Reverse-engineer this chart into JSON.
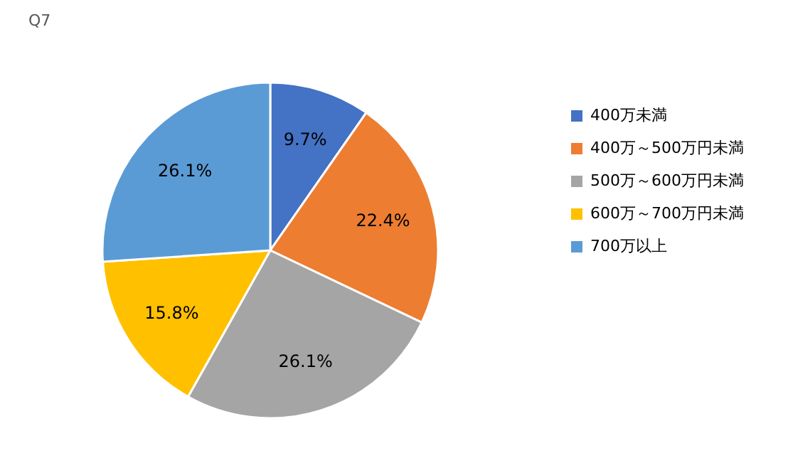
{
  "chart_data": {
    "type": "pie",
    "title": "Q7",
    "categories": [
      "400万未満",
      "400万～500万円未満",
      "500万～600万円未満",
      "600万～700万円未満",
      "700万以上"
    ],
    "values": [
      9.7,
      22.4,
      26.1,
      15.8,
      26.1
    ],
    "value_labels": [
      "9.7%",
      "22.4%",
      "26.1%",
      "15.8%",
      "26.1%"
    ],
    "colors": [
      "#4472c4",
      "#ed7d31",
      "#a5a5a5",
      "#ffc000",
      "#5b9bd5"
    ],
    "legend": "right"
  }
}
